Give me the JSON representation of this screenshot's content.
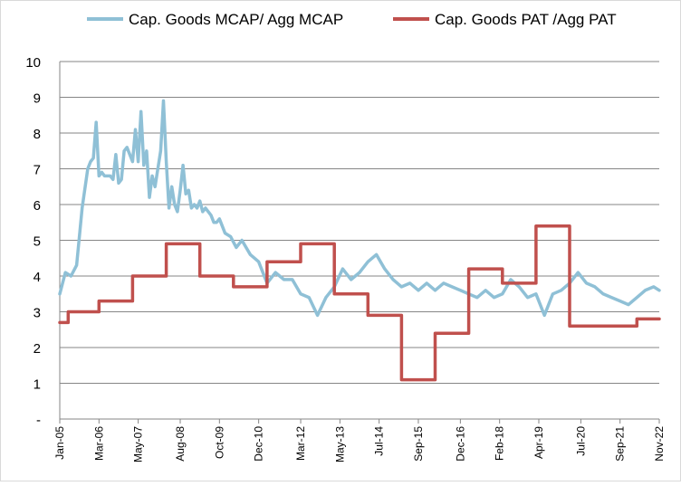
{
  "chart_data": {
    "type": "line",
    "title": "",
    "xlabel": "",
    "ylabel": "",
    "ylim": [
      0,
      10
    ],
    "y_ticks": [
      "-",
      "1",
      "2",
      "3",
      "4",
      "5",
      "6",
      "7",
      "8",
      "9",
      "10"
    ],
    "x_ticks": [
      "Jan-05",
      "Mar-06",
      "May-07",
      "Aug-08",
      "Oct-09",
      "Dec-10",
      "Mar-12",
      "May-13",
      "Jul-14",
      "Sep-15",
      "Dec-16",
      "Feb-18",
      "Apr-19",
      "Jul-20",
      "Sep-21",
      "Nov-22"
    ],
    "x_range": [
      "2005-01",
      "2022-11"
    ],
    "grid": true,
    "legend": "top",
    "series": [
      {
        "name": "Cap. Goods MCAP/ Agg MCAP",
        "color": "#8fc0d6",
        "x": [
          "2005-01",
          "2005-03",
          "2005-05",
          "2005-07",
          "2005-09",
          "2005-11",
          "2005-12",
          "2006-01",
          "2006-02",
          "2006-03",
          "2006-04",
          "2006-05",
          "2006-06",
          "2006-07",
          "2006-08",
          "2006-09",
          "2006-10",
          "2006-11",
          "2006-12",
          "2007-01",
          "2007-02",
          "2007-03",
          "2007-04",
          "2007-05",
          "2007-06",
          "2007-07",
          "2007-08",
          "2007-09",
          "2007-10",
          "2007-11",
          "2007-12",
          "2008-01",
          "2008-02",
          "2008-03",
          "2008-04",
          "2008-05",
          "2008-06",
          "2008-07",
          "2008-08",
          "2008-09",
          "2008-10",
          "2008-11",
          "2008-12",
          "2009-01",
          "2009-02",
          "2009-03",
          "2009-04",
          "2009-05",
          "2009-06",
          "2009-07",
          "2009-08",
          "2009-09",
          "2009-10",
          "2009-11",
          "2009-12",
          "2010-02",
          "2010-04",
          "2010-06",
          "2010-09",
          "2010-12",
          "2011-03",
          "2011-06",
          "2011-09",
          "2011-12",
          "2012-03",
          "2012-06",
          "2012-09",
          "2012-12",
          "2013-03",
          "2013-06",
          "2013-09",
          "2013-12",
          "2014-03",
          "2014-06",
          "2014-09",
          "2014-12",
          "2015-03",
          "2015-06",
          "2015-09",
          "2015-12",
          "2016-03",
          "2016-06",
          "2016-09",
          "2016-12",
          "2017-03",
          "2017-06",
          "2017-09",
          "2017-12",
          "2018-03",
          "2018-06",
          "2018-09",
          "2018-12",
          "2019-03",
          "2019-06",
          "2019-09",
          "2019-12",
          "2020-03",
          "2020-06",
          "2020-09",
          "2020-12",
          "2021-03",
          "2021-06",
          "2021-09",
          "2021-12",
          "2022-03",
          "2022-06",
          "2022-09",
          "2022-11"
        ],
        "values": [
          3.5,
          4.1,
          4.0,
          4.3,
          5.9,
          7.0,
          7.2,
          7.3,
          8.3,
          6.8,
          6.9,
          6.8,
          6.8,
          6.8,
          6.7,
          7.4,
          6.6,
          6.7,
          7.5,
          7.6,
          7.4,
          7.2,
          8.1,
          7.2,
          8.6,
          7.1,
          7.5,
          6.2,
          6.8,
          6.5,
          7.0,
          7.5,
          8.9,
          7.2,
          5.9,
          6.5,
          6.0,
          5.8,
          6.4,
          7.1,
          6.3,
          6.4,
          5.9,
          6.0,
          5.9,
          6.1,
          5.8,
          5.9,
          5.8,
          5.7,
          5.5,
          5.5,
          5.6,
          5.4,
          5.2,
          5.1,
          4.8,
          5.0,
          4.6,
          4.4,
          3.8,
          4.1,
          3.9,
          3.9,
          3.5,
          3.4,
          2.9,
          3.4,
          3.7,
          4.2,
          3.9,
          4.1,
          4.4,
          4.6,
          4.2,
          3.9,
          3.7,
          3.8,
          3.6,
          3.8,
          3.6,
          3.8,
          3.7,
          3.6,
          3.5,
          3.4,
          3.6,
          3.4,
          3.5,
          3.9,
          3.7,
          3.4,
          3.5,
          2.9,
          3.5,
          3.6,
          3.8,
          4.1,
          3.8,
          3.7,
          3.5,
          3.4,
          3.3,
          3.2,
          3.4,
          3.6,
          3.7,
          3.6
        ]
      },
      {
        "name": "Cap. Goods PAT /Agg PAT",
        "color": "#c0504d",
        "x": [
          "2005-01",
          "2005-04",
          "2005-04",
          "2006-03",
          "2006-03",
          "2007-03",
          "2007-03",
          "2008-03",
          "2008-03",
          "2009-03",
          "2009-03",
          "2010-03",
          "2010-03",
          "2011-03",
          "2011-03",
          "2012-03",
          "2012-03",
          "2013-03",
          "2013-03",
          "2014-03",
          "2014-03",
          "2015-03",
          "2015-03",
          "2016-03",
          "2016-03",
          "2017-03",
          "2017-03",
          "2018-03",
          "2018-03",
          "2019-03",
          "2019-03",
          "2020-03",
          "2020-03",
          "2021-03",
          "2021-03",
          "2022-03",
          "2022-03",
          "2022-11"
        ],
        "values": [
          2.7,
          2.7,
          3.0,
          3.0,
          3.3,
          3.3,
          4.0,
          4.0,
          4.9,
          4.9,
          4.0,
          4.0,
          3.7,
          3.7,
          4.4,
          4.4,
          4.9,
          4.9,
          3.5,
          3.5,
          2.9,
          2.9,
          1.1,
          1.1,
          2.4,
          2.4,
          4.2,
          4.2,
          3.8,
          3.8,
          5.4,
          5.4,
          2.6,
          2.6,
          2.6,
          2.6,
          2.8,
          2.8
        ]
      }
    ]
  }
}
